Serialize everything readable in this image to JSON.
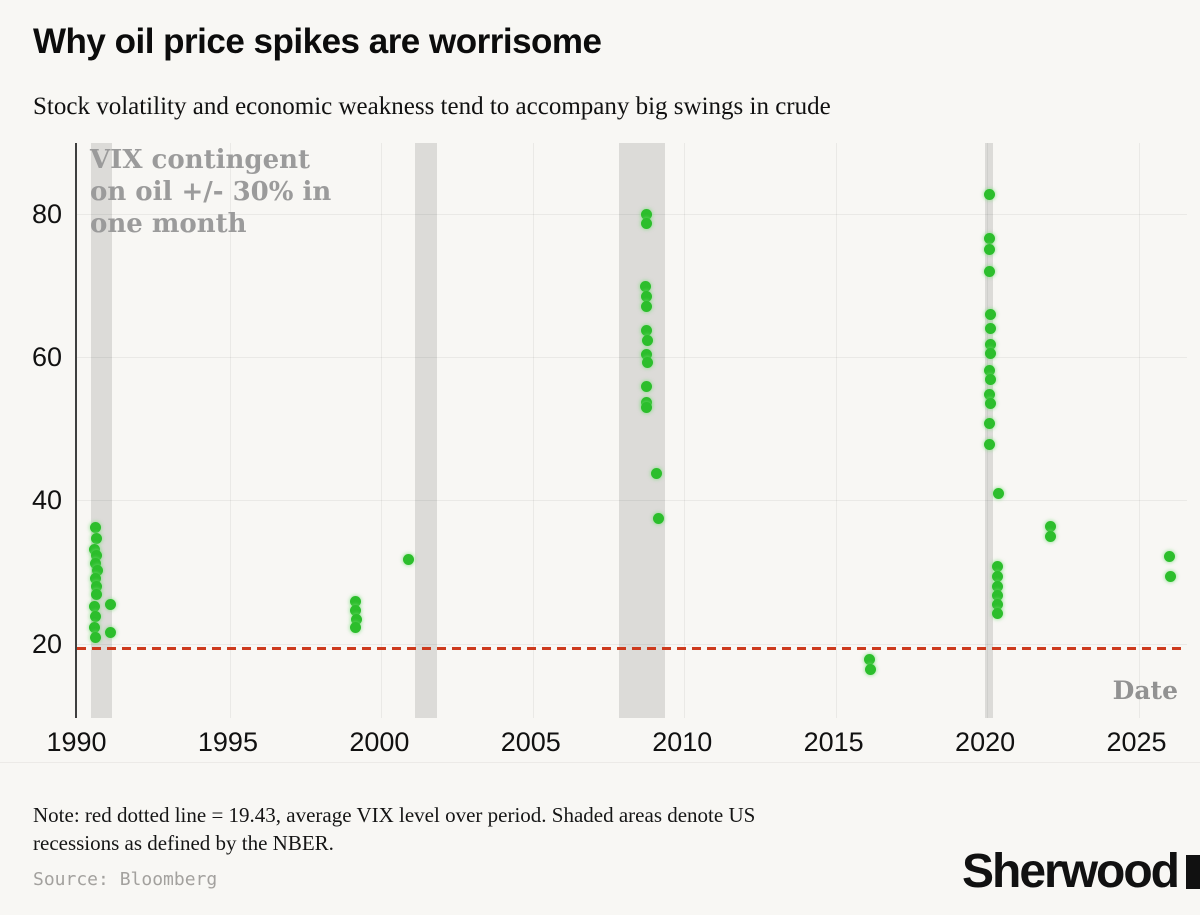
{
  "header": {
    "title": "Why oil price spikes are worrisome",
    "subtitle": "Stock volatility and economic weakness tend to accompany big swings in crude"
  },
  "footer": {
    "note_line1": "Note: red dotted line = 19.43, average VIX level over period. Shaded areas denote US",
    "note_line2": "recessions as defined by the NBER.",
    "source": "Source: Bloomberg",
    "logo": "Sherwood"
  },
  "chart_data": {
    "type": "scatter",
    "title": "Why oil price spikes are worrisome",
    "subtitle": "Stock volatility and economic weakness tend to accompany big swings in crude",
    "xlabel": "Date",
    "ylabel": "VIX contingent on oil +/- 30% in one month",
    "annotation": "VIX contingent\non oil +/- 30% in\none month",
    "legend_position": "none",
    "grid": true,
    "xlim": [
      1989.95,
      2026.6
    ],
    "ylim": [
      9.6,
      89.9
    ],
    "x_ticks": [
      1990,
      1995,
      2000,
      2005,
      2010,
      2015,
      2020,
      2025
    ],
    "x_grid": [
      1995,
      2000,
      2005,
      2010,
      2015,
      2020,
      2025
    ],
    "y_ticks": [
      20,
      40,
      60,
      80
    ],
    "average_vix_line": 19.43,
    "recession_bands": [
      [
        1990.42,
        1991.11
      ],
      [
        2001.12,
        2001.84
      ],
      [
        2007.84,
        2009.38
      ],
      [
        2019.92,
        2020.2
      ]
    ],
    "points": [
      [
        1990.55,
        36.2
      ],
      [
        1990.58,
        34.6
      ],
      [
        1990.52,
        33.1
      ],
      [
        1990.6,
        32.3
      ],
      [
        1990.55,
        31.2
      ],
      [
        1990.62,
        30.2
      ],
      [
        1990.55,
        29.1
      ],
      [
        1990.58,
        28.0
      ],
      [
        1990.6,
        26.8
      ],
      [
        1990.52,
        25.2
      ],
      [
        1990.56,
        23.8
      ],
      [
        1990.53,
        22.2
      ],
      [
        1990.57,
        20.8
      ],
      [
        1991.05,
        25.4
      ],
      [
        1991.07,
        21.5
      ],
      [
        1999.14,
        25.9
      ],
      [
        1999.16,
        24.6
      ],
      [
        1999.17,
        23.4
      ],
      [
        1999.15,
        22.2
      ],
      [
        2000.89,
        31.7
      ],
      [
        2008.74,
        79.9
      ],
      [
        2008.75,
        78.6
      ],
      [
        2008.73,
        69.8
      ],
      [
        2008.75,
        68.4
      ],
      [
        2008.74,
        67.0
      ],
      [
        2008.76,
        63.7
      ],
      [
        2008.78,
        62.3
      ],
      [
        2008.77,
        60.3
      ],
      [
        2008.78,
        59.2
      ],
      [
        2008.74,
        55.9
      ],
      [
        2008.74,
        53.7
      ],
      [
        2008.76,
        52.9
      ],
      [
        2009.1,
        43.8
      ],
      [
        2009.16,
        37.4
      ],
      [
        2016.13,
        17.8
      ],
      [
        2016.15,
        16.4
      ],
      [
        2020.07,
        82.7
      ],
      [
        2020.08,
        76.6
      ],
      [
        2020.08,
        75.0
      ],
      [
        2020.09,
        71.9
      ],
      [
        2020.1,
        65.9
      ],
      [
        2020.1,
        64.0
      ],
      [
        2020.1,
        61.8
      ],
      [
        2020.1,
        60.5
      ],
      [
        2020.09,
        58.1
      ],
      [
        2020.1,
        56.9
      ],
      [
        2020.08,
        54.8
      ],
      [
        2020.1,
        53.5
      ],
      [
        2020.09,
        50.7
      ],
      [
        2020.07,
        47.8
      ],
      [
        2020.36,
        40.9
      ],
      [
        2020.34,
        30.7
      ],
      [
        2020.34,
        29.3
      ],
      [
        2020.33,
        28.0
      ],
      [
        2020.34,
        26.7
      ],
      [
        2020.35,
        25.5
      ],
      [
        2020.34,
        24.2
      ],
      [
        2022.09,
        36.3
      ],
      [
        2022.1,
        34.9
      ],
      [
        2026.03,
        32.2
      ],
      [
        2026.05,
        29.4
      ]
    ],
    "colors": {
      "dot": "#2cbe2c",
      "average_line": "#cd3a1d",
      "recession_band": "#dcdbd8",
      "background": "#f8f7f4"
    }
  }
}
